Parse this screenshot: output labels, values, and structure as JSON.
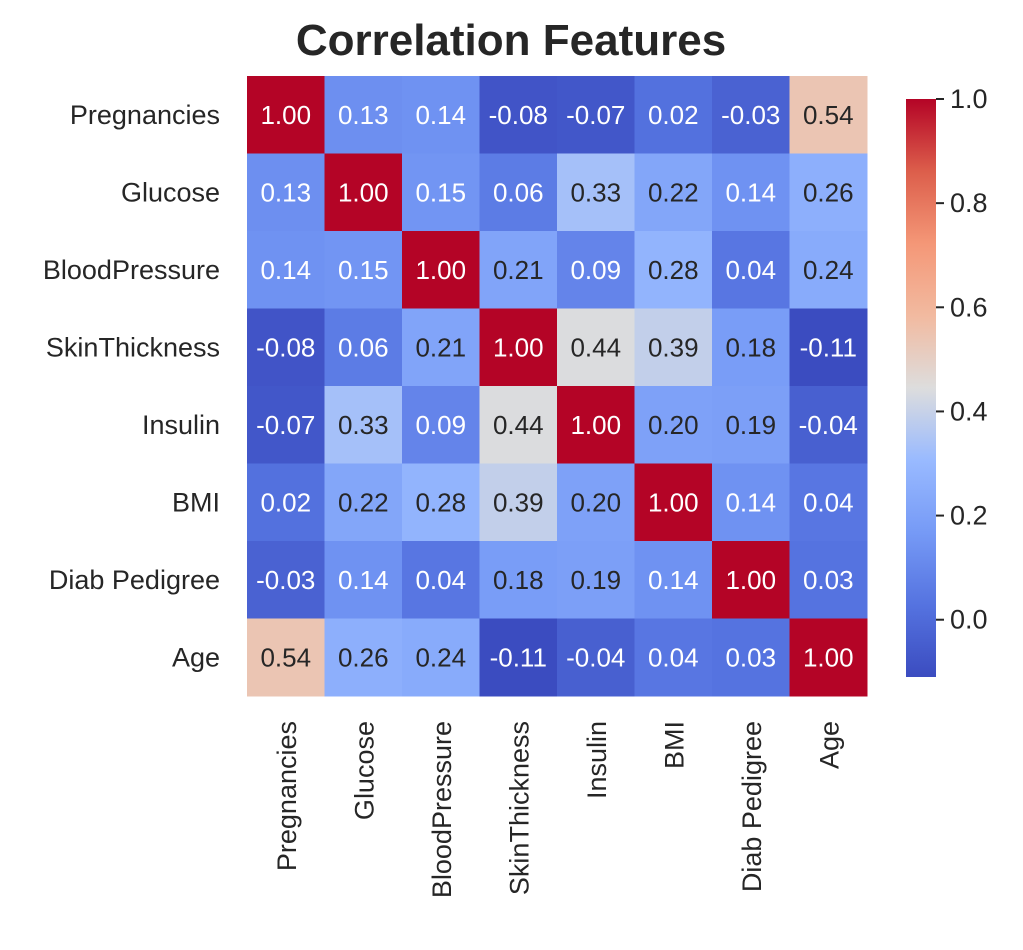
{
  "chart_data": {
    "type": "heatmap",
    "title": "Correlation Features",
    "row_labels": [
      "Pregnancies",
      "Glucose",
      "BloodPressure",
      "SkinThickness",
      "Insulin",
      "BMI",
      "Diab Pedigree",
      "Age"
    ],
    "col_labels": [
      "Pregnancies",
      "Glucose",
      "BloodPressure",
      "SkinThickness",
      "Insulin",
      "BMI",
      "Diab Pedigree",
      "Age"
    ],
    "values": [
      [
        1.0,
        0.13,
        0.14,
        -0.08,
        -0.07,
        0.02,
        -0.03,
        0.54
      ],
      [
        0.13,
        1.0,
        0.15,
        0.06,
        0.33,
        0.22,
        0.14,
        0.26
      ],
      [
        0.14,
        0.15,
        1.0,
        0.21,
        0.09,
        0.28,
        0.04,
        0.24
      ],
      [
        -0.08,
        0.06,
        0.21,
        1.0,
        0.44,
        0.39,
        0.18,
        -0.11
      ],
      [
        -0.07,
        0.33,
        0.09,
        0.44,
        1.0,
        0.2,
        0.19,
        -0.04
      ],
      [
        0.02,
        0.22,
        0.28,
        0.39,
        0.2,
        1.0,
        0.14,
        0.04
      ],
      [
        -0.03,
        0.14,
        0.04,
        0.18,
        0.19,
        0.14,
        1.0,
        0.03
      ],
      [
        0.54,
        0.26,
        0.24,
        -0.11,
        -0.04,
        0.04,
        0.03,
        1.0
      ]
    ],
    "value_format": "2 decimals",
    "colormap": "coolwarm",
    "vmin": -0.11,
    "vmax": 1.0,
    "colorbar_ticks": [
      "0.0",
      "0.2",
      "0.4",
      "0.6",
      "0.8",
      "1.0"
    ],
    "colorbar_position": "right",
    "x_tick_rotation": "vertical",
    "grid": false
  }
}
